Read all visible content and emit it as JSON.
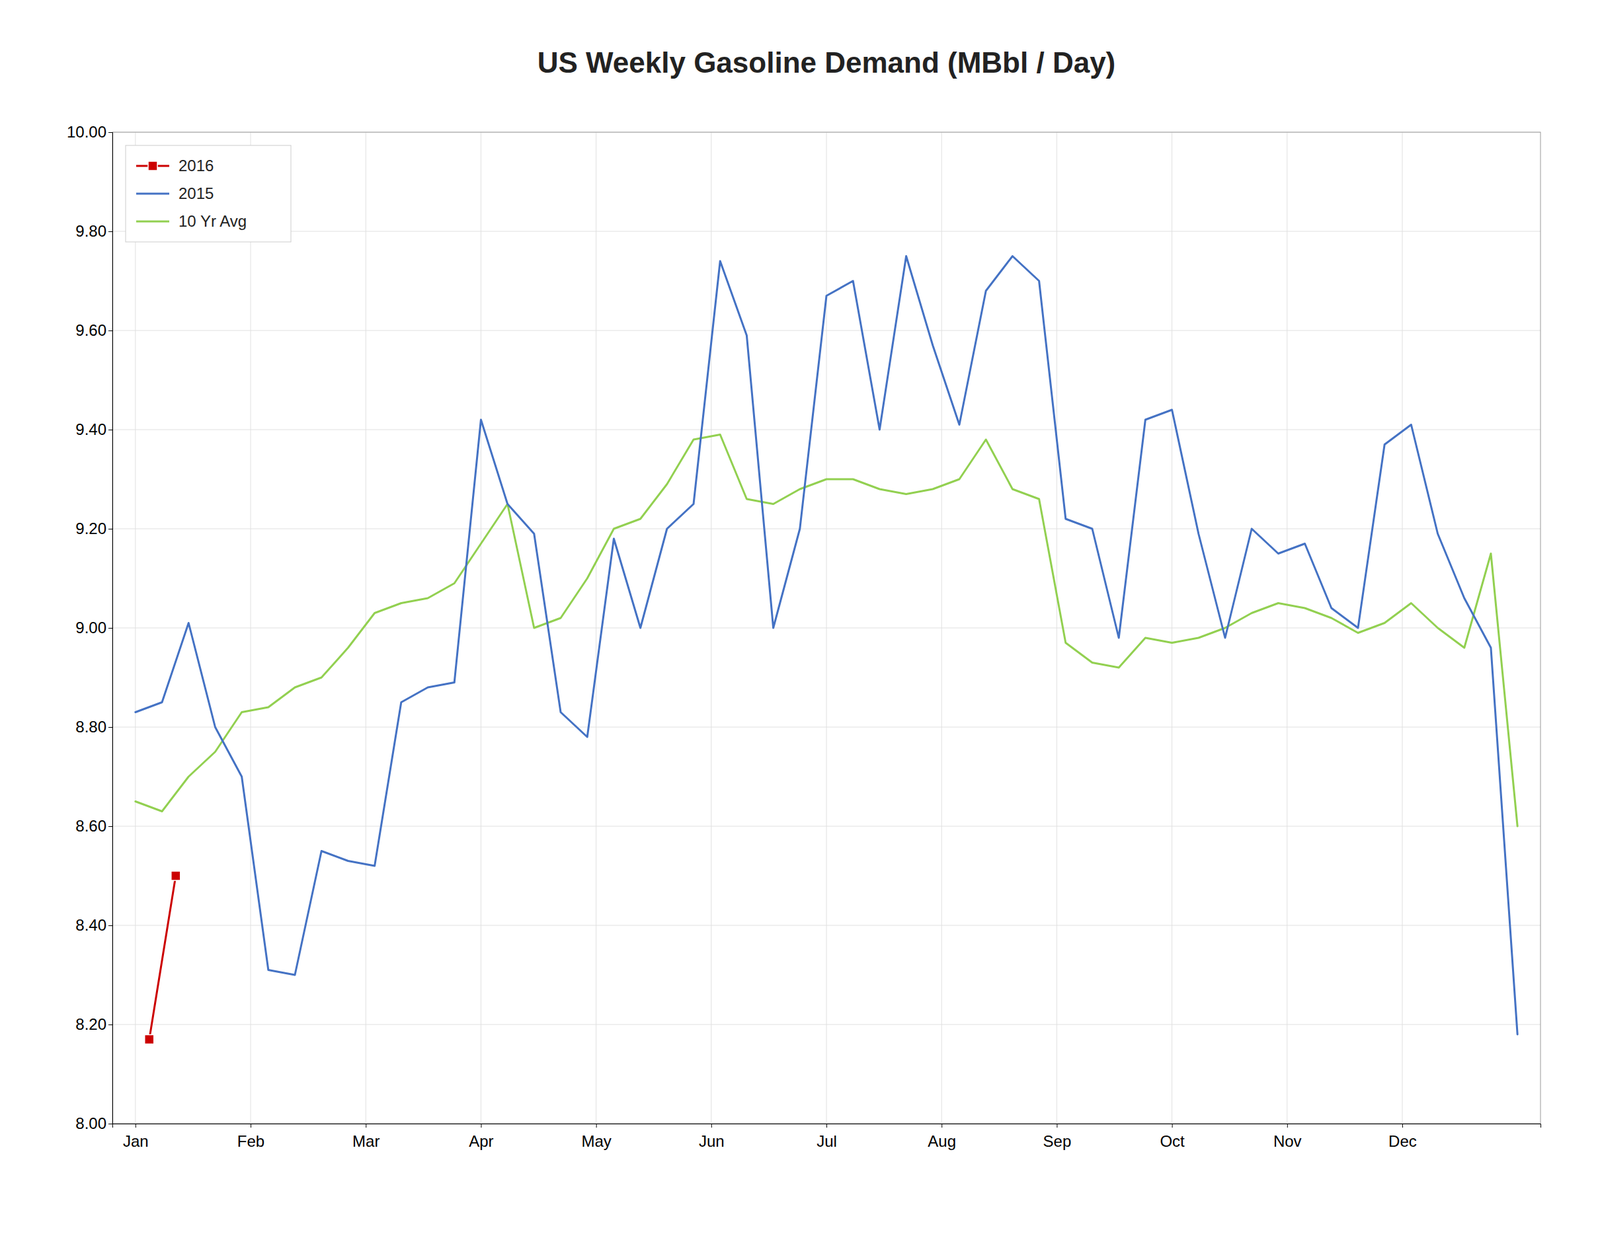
{
  "chart_data": {
    "type": "line",
    "title": "US Weekly Gasoline Demand (MBbl / Day)",
    "xlim": [
      -0.2,
      12.2
    ],
    "xticks": [
      {
        "value": 0,
        "label": "Jan"
      },
      {
        "value": 1,
        "label": "Feb"
      },
      {
        "value": 2,
        "label": "Mar"
      },
      {
        "value": 3,
        "label": "Apr"
      },
      {
        "value": 4,
        "label": "May"
      },
      {
        "value": 5,
        "label": "Jun"
      },
      {
        "value": 6,
        "label": "Jul"
      },
      {
        "value": 7,
        "label": "Aug"
      },
      {
        "value": 8,
        "label": "Sep"
      },
      {
        "value": 9,
        "label": "Oct"
      },
      {
        "value": 10,
        "label": "Nov"
      },
      {
        "value": 11,
        "label": "Dec"
      }
    ],
    "ylim": [
      8.0,
      10.0
    ],
    "yticks": [
      {
        "value": 8.0,
        "label": "8.00"
      },
      {
        "value": 8.2,
        "label": "8.20"
      },
      {
        "value": 8.4,
        "label": "8.40"
      },
      {
        "value": 8.6,
        "label": "8.60"
      },
      {
        "value": 8.8,
        "label": "8.80"
      },
      {
        "value": 9.0,
        "label": "9.00"
      },
      {
        "value": 9.2,
        "label": "9.20"
      },
      {
        "value": 9.4,
        "label": "9.40"
      },
      {
        "value": 9.6,
        "label": "9.60"
      },
      {
        "value": 9.8,
        "label": "9.80"
      },
      {
        "value": 10.0,
        "label": "10.00"
      }
    ],
    "grid": true,
    "legend": "upper left",
    "series": [
      {
        "name": "2016",
        "color": "#cc0000",
        "marker": "square",
        "x": [
          0.12,
          0.35
        ],
        "values": [
          8.17,
          8.5
        ]
      },
      {
        "name": "2015",
        "color": "#4472c4",
        "x": [
          0,
          0.230769230769,
          0.461538461538,
          0.692307692308,
          0.923076923077,
          1.153846153846,
          1.384615384615,
          1.615384615385,
          1.846153846154,
          2.076923076923,
          2.307692307692,
          2.538461538462,
          2.769230769231,
          3,
          3.230769230769,
          3.461538461538,
          3.692307692308,
          3.923076923077,
          4.153846153846,
          4.384615384615,
          4.615384615385,
          4.846153846154,
          5.076923076923,
          5.307692307692,
          5.538461538462,
          5.769230769231,
          6,
          6.230769230769,
          6.461538461538,
          6.692307692308,
          6.923076923077,
          7.153846153846,
          7.384615384615,
          7.615384615385,
          7.846153846154,
          8.076923076923,
          8.307692307692,
          8.538461538462,
          8.769230769231,
          9,
          9.230769230769,
          9.461538461538,
          9.692307692308,
          9.923076923077,
          10.153846153846,
          10.384615384615,
          10.615384615385,
          10.846153846154,
          11.076923076923,
          11.307692307692,
          11.538461538462,
          11.769230769231,
          12
        ],
        "values": [
          8.83,
          8.85,
          9.01,
          8.8,
          8.7,
          8.31,
          8.3,
          8.55,
          8.53,
          8.52,
          8.85,
          8.88,
          8.89,
          9.42,
          9.25,
          9.19,
          8.83,
          8.78,
          9.18,
          9.0,
          9.2,
          9.25,
          9.74,
          9.59,
          9.0,
          9.2,
          9.67,
          9.7,
          9.4,
          9.75,
          9.57,
          9.41,
          9.68,
          9.75,
          9.7,
          9.22,
          9.2,
          8.98,
          9.42,
          9.44,
          9.19,
          8.98,
          9.2,
          9.15,
          9.17,
          9.04,
          9.0,
          9.37,
          9.41,
          9.19,
          9.06,
          8.96,
          8.18
        ]
      },
      {
        "name": "10 Yr Avg",
        "color": "#92d050",
        "x": [
          0,
          0.230769230769,
          0.461538461538,
          0.692307692308,
          0.923076923077,
          1.153846153846,
          1.384615384615,
          1.615384615385,
          1.846153846154,
          2.076923076923,
          2.307692307692,
          2.538461538462,
          2.769230769231,
          3,
          3.230769230769,
          3.461538461538,
          3.692307692308,
          3.923076923077,
          4.153846153846,
          4.384615384615,
          4.615384615385,
          4.846153846154,
          5.076923076923,
          5.307692307692,
          5.538461538462,
          5.769230769231,
          6,
          6.230769230769,
          6.461538461538,
          6.692307692308,
          6.923076923077,
          7.153846153846,
          7.384615384615,
          7.615384615385,
          7.846153846154,
          8.076923076923,
          8.307692307692,
          8.538461538462,
          8.769230769231,
          9,
          9.230769230769,
          9.461538461538,
          9.692307692308,
          9.923076923077,
          10.153846153846,
          10.384615384615,
          10.615384615385,
          10.846153846154,
          11.076923076923,
          11.307692307692,
          11.538461538462,
          11.769230769231,
          12
        ],
        "values": [
          8.65,
          8.63,
          8.7,
          8.75,
          8.83,
          8.84,
          8.88,
          8.9,
          8.96,
          9.03,
          9.05,
          9.06,
          9.09,
          9.17,
          9.25,
          9.0,
          9.02,
          9.1,
          9.2,
          9.22,
          9.29,
          9.38,
          9.39,
          9.26,
          9.25,
          9.28,
          9.3,
          9.3,
          9.28,
          9.27,
          9.28,
          9.3,
          9.38,
          9.28,
          9.26,
          8.97,
          8.93,
          8.92,
          8.98,
          8.97,
          8.98,
          9.0,
          9.03,
          9.05,
          9.04,
          9.02,
          8.99,
          9.01,
          9.05,
          9.0,
          8.96,
          9.15,
          8.6
        ]
      }
    ]
  }
}
